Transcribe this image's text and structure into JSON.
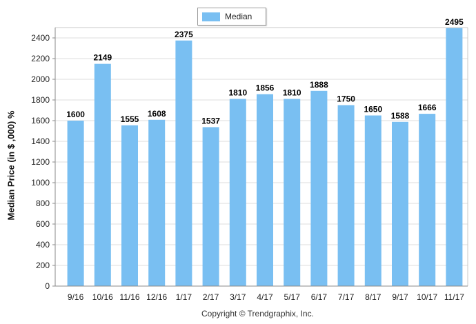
{
  "chart_data": {
    "type": "bar",
    "categories": [
      "9/16",
      "10/16",
      "11/16",
      "12/16",
      "1/17",
      "2/17",
      "3/17",
      "4/17",
      "5/17",
      "6/17",
      "7/17",
      "8/17",
      "9/17",
      "10/17",
      "11/17"
    ],
    "series": [
      {
        "name": "Median",
        "values": [
          1600,
          2149,
          1555,
          1608,
          2375,
          1537,
          1810,
          1856,
          1810,
          1888,
          1750,
          1650,
          1588,
          1666,
          2495
        ]
      }
    ],
    "ylabel": "Median Price (in $ ,000) %",
    "ylim": [
      0,
      2500
    ],
    "yticks": [
      0,
      200,
      400,
      600,
      800,
      1000,
      1200,
      1400,
      1600,
      1800,
      2000,
      2200,
      2400
    ],
    "grid": true,
    "legend_position": "top-center",
    "bar_color": "#79bff2",
    "data_labels": true
  },
  "legend": {
    "label": "Median"
  },
  "footer": {
    "copyright": "Copyright © Trendgraphix, Inc."
  }
}
